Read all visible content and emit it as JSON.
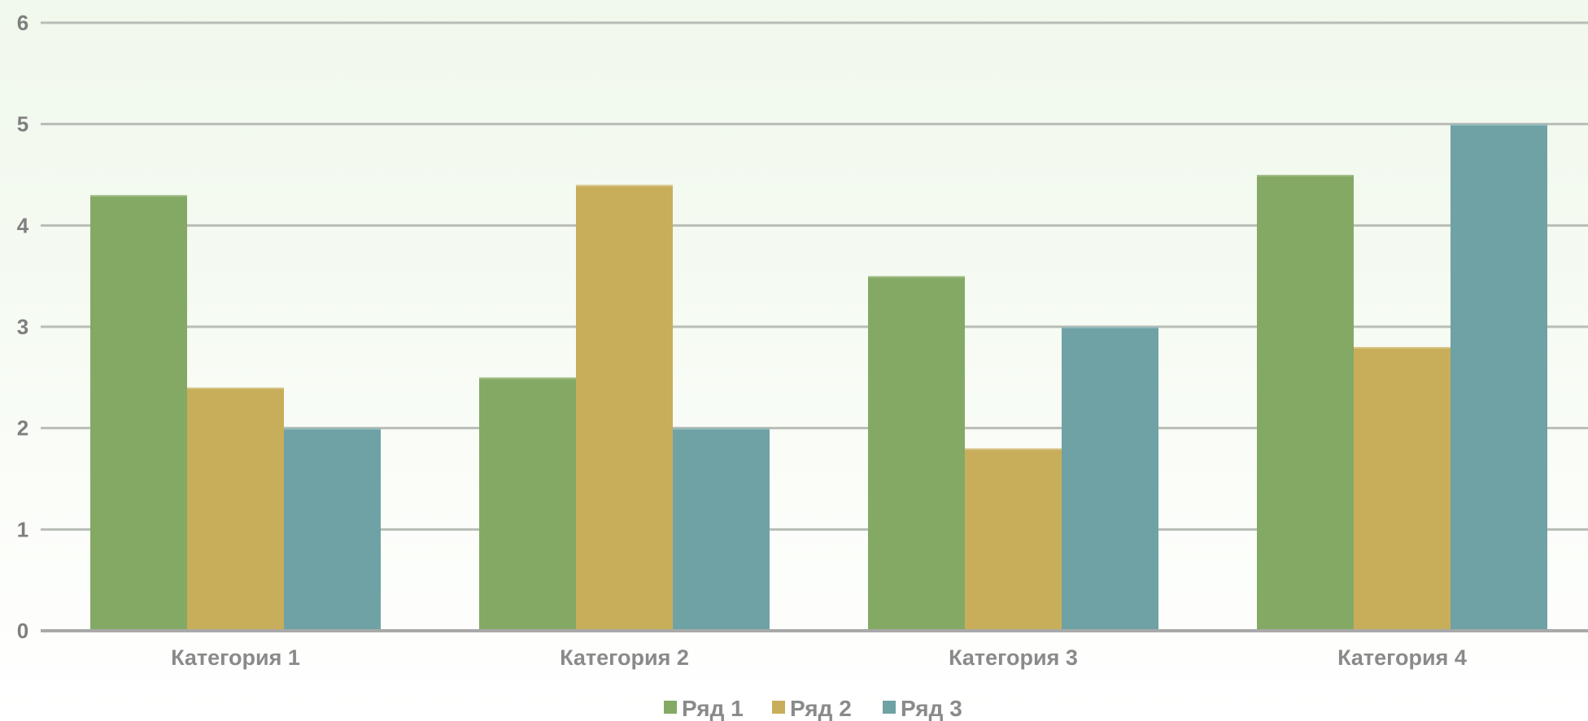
{
  "chart_data": {
    "type": "bar",
    "title": "",
    "xlabel": "",
    "ylabel": "",
    "categories": [
      "Категория 1",
      "Категория 2",
      "Категория 3",
      "Категория 4"
    ],
    "series": [
      {
        "name": "Ряд 1",
        "color": "#84a964",
        "values": [
          4.3,
          2.5,
          3.5,
          4.5
        ]
      },
      {
        "name": "Ряд 2",
        "color": "#c8ae5a",
        "values": [
          2.4,
          4.4,
          1.8,
          2.8
        ]
      },
      {
        "name": "Ряд 3",
        "color": "#6fa2a5",
        "values": [
          2,
          2,
          3,
          5
        ]
      }
    ],
    "ylim": [
      0,
      6
    ],
    "yticks": [
      0,
      1,
      2,
      3,
      4,
      5,
      6
    ],
    "grid": true,
    "legend_position": "bottom",
    "colors": {
      "gridline": "#b8bdb5",
      "axis": "#a9a9a9",
      "label": "#7f7f7f"
    }
  }
}
